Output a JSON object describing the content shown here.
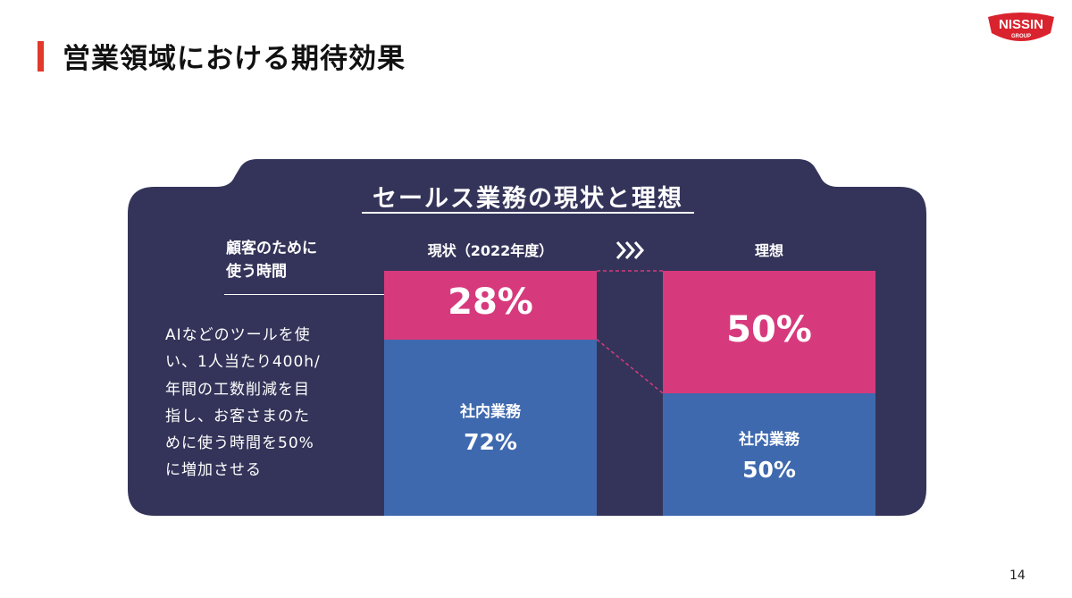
{
  "page": {
    "title": "営業領域における期待効果",
    "page_number": "14",
    "logo_line1": "NISSIN",
    "logo_line2": "GROUP"
  },
  "panel": {
    "heading": "セールス業務の現状と理想",
    "label_line1": "顧客のために",
    "label_line2": "使う時間",
    "description": [
      "AIなどのツールを使",
      "い、1人当たり400h/",
      "年間の工数削減を目",
      "指し、お客さまのた",
      "めに使う時間を50%",
      "に増加させる"
    ]
  },
  "colors": {
    "panel_bg": "#34345a",
    "customer_time": "#d63a7d",
    "internal": "#3f69ae",
    "title_accent": "#e03a2a",
    "logo_red": "#d9232e"
  },
  "chart_data": {
    "type": "bar",
    "stacked": true,
    "categories": [
      "現状（2022年度）",
      "理想"
    ],
    "series": [
      {
        "name": "顧客のために使う時間",
        "values": [
          28,
          50
        ],
        "labels": [
          "28%",
          "50%"
        ],
        "color": "#d63a7d"
      },
      {
        "name": "社内業務",
        "values": [
          72,
          50
        ],
        "labels": [
          "72%",
          "50%"
        ],
        "color": "#3f69ae"
      }
    ],
    "ylim": [
      0,
      100
    ],
    "title": "セールス業務の現状と理想",
    "xlabel": "",
    "ylabel": ""
  }
}
